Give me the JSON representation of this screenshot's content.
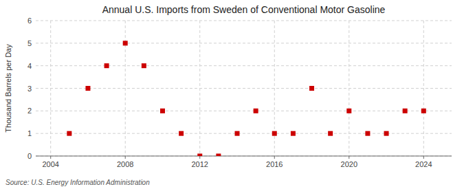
{
  "chart_data": {
    "type": "scatter",
    "title": "Annual U.S. Imports from Sweden of Conventional Motor Gasoline",
    "ylabel": "Thousand Barrels per Day",
    "annotation": "Source: U.S. Energy Information Administration",
    "x": [
      2005,
      2006,
      2007,
      2008,
      2009,
      2010,
      2011,
      2012,
      2013,
      2014,
      2015,
      2016,
      2017,
      2018,
      2019,
      2020,
      2021,
      2022,
      2023,
      2024
    ],
    "values": [
      1,
      3,
      4,
      5,
      4,
      2,
      1,
      0,
      0,
      1,
      2,
      1,
      1,
      3,
      1,
      2,
      1,
      1,
      2,
      2
    ],
    "color": "#cc0000",
    "marker": "square",
    "xlim": [
      2003.2,
      2025.5
    ],
    "ylim": [
      0,
      6
    ],
    "xticks": [
      2004,
      2008,
      2012,
      2016,
      2020,
      2024
    ],
    "yticks": [
      0,
      1,
      2,
      3,
      4,
      5,
      6
    ],
    "grid": true
  }
}
